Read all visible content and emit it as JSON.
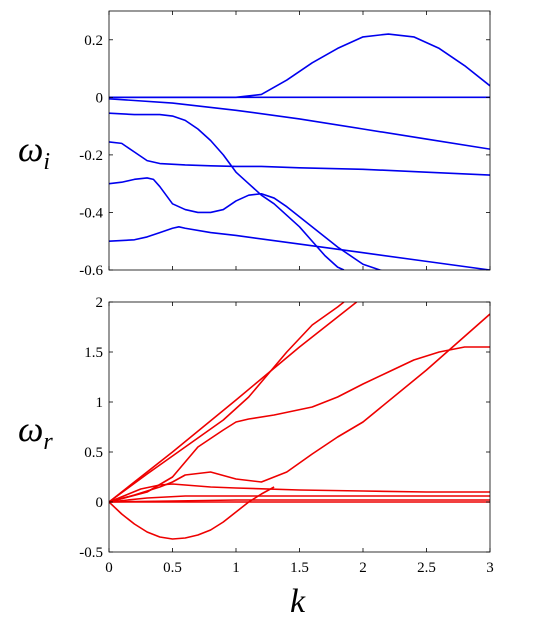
{
  "chart_data": [
    {
      "type": "line",
      "title": "",
      "ylabel_symbol": "ω",
      "ylabel_subscript": "i",
      "xlabel": "",
      "xlim": [
        0,
        3
      ],
      "ylim": [
        -0.6,
        0.3
      ],
      "yticks": [
        0.2,
        0,
        -0.2,
        -0.4,
        -0.6
      ],
      "ytick_labels": [
        "0.2",
        "0",
        "-0.2",
        "-0.4",
        "-0.6"
      ],
      "grid": false,
      "line_color": "#0000ee",
      "series": [
        {
          "x": [
            0,
            1.0,
            1.2,
            1.4,
            1.6,
            1.8,
            2.0,
            2.2,
            2.4,
            2.6,
            2.8,
            3.0
          ],
          "values": [
            0,
            0,
            0.01,
            0.06,
            0.12,
            0.17,
            0.21,
            0.22,
            0.21,
            0.17,
            0.11,
            0.04
          ]
        },
        {
          "x": [
            0,
            3
          ],
          "values": [
            0,
            0
          ]
        },
        {
          "x": [
            0,
            0.5,
            1.0,
            1.5,
            2.0,
            2.5,
            3.0
          ],
          "values": [
            -0.005,
            -0.02,
            -0.045,
            -0.075,
            -0.11,
            -0.145,
            -0.18
          ]
        },
        {
          "x": [
            0,
            0.2,
            0.4,
            0.5,
            0.6,
            0.7,
            0.8,
            0.9,
            1.0,
            1.1,
            1.2,
            1.3,
            1.4,
            1.5,
            1.6,
            1.7,
            1.8,
            1.85
          ],
          "values": [
            -0.055,
            -0.06,
            -0.06,
            -0.065,
            -0.08,
            -0.11,
            -0.15,
            -0.2,
            -0.26,
            -0.3,
            -0.34,
            -0.37,
            -0.41,
            -0.45,
            -0.5,
            -0.55,
            -0.59,
            -0.6
          ]
        },
        {
          "x": [
            0,
            0.1,
            0.2,
            0.3,
            0.4,
            0.6,
            0.8,
            1.0,
            1.2,
            1.5,
            2.0,
            2.5,
            3.0
          ],
          "values": [
            -0.155,
            -0.16,
            -0.19,
            -0.22,
            -0.23,
            -0.235,
            -0.238,
            -0.24,
            -0.24,
            -0.245,
            -0.25,
            -0.26,
            -0.27
          ]
        },
        {
          "x": [
            0,
            0.1,
            0.2,
            0.3,
            0.35,
            0.4,
            0.5,
            0.6,
            0.7,
            0.8,
            0.9,
            1.0,
            1.1,
            1.2,
            1.3,
            1.4,
            1.6,
            1.8,
            2.0,
            2.2
          ],
          "values": [
            -0.3,
            -0.295,
            -0.285,
            -0.28,
            -0.285,
            -0.31,
            -0.37,
            -0.39,
            -0.4,
            -0.4,
            -0.39,
            -0.36,
            -0.34,
            -0.335,
            -0.35,
            -0.38,
            -0.45,
            -0.52,
            -0.58,
            -0.61
          ]
        },
        {
          "x": [
            0,
            0.2,
            0.3,
            0.4,
            0.5,
            0.55,
            0.6,
            0.8,
            1.0,
            1.5,
            2.0,
            2.5,
            3.0
          ],
          "values": [
            -0.5,
            -0.495,
            -0.485,
            -0.47,
            -0.455,
            -0.45,
            -0.455,
            -0.47,
            -0.48,
            -0.51,
            -0.54,
            -0.57,
            -0.6
          ]
        }
      ]
    },
    {
      "type": "line",
      "title": "",
      "ylabel_symbol": "ω",
      "ylabel_subscript": "r",
      "xlabel": "k",
      "xlim": [
        0,
        3
      ],
      "ylim": [
        -0.5,
        2
      ],
      "xticks": [
        0,
        0.5,
        1,
        1.5,
        2,
        2.5,
        3
      ],
      "xtick_labels": [
        "0",
        "0.5",
        "1",
        "1.5",
        "2",
        "2.5",
        "3"
      ],
      "yticks": [
        2,
        1.5,
        1,
        0.5,
        0,
        -0.5
      ],
      "ytick_labels": [
        "2",
        "1.5",
        "1",
        "0.5",
        "0",
        "-0.5"
      ],
      "grid": false,
      "line_color": "#ee0000",
      "series": [
        {
          "x": [
            0,
            0.5,
            1.0,
            1.5,
            1.95
          ],
          "values": [
            0,
            0.5,
            1.02,
            1.55,
            2.0
          ]
        },
        {
          "x": [
            0,
            0.3,
            0.6,
            0.9,
            1.1,
            1.2,
            1.4,
            1.6,
            1.8,
            1.85
          ],
          "values": [
            0,
            0.28,
            0.55,
            0.82,
            1.05,
            1.2,
            1.5,
            1.77,
            1.95,
            2.0
          ]
        },
        {
          "x": [
            0,
            0.3,
            0.5,
            0.7,
            0.9,
            1.0,
            1.1,
            1.3,
            1.6,
            1.8,
            2.0,
            2.2,
            2.4,
            2.6,
            2.8,
            3.0
          ],
          "values": [
            0,
            0.1,
            0.25,
            0.55,
            0.72,
            0.8,
            0.83,
            0.87,
            0.95,
            1.05,
            1.18,
            1.3,
            1.42,
            1.5,
            1.55,
            1.55
          ]
        },
        {
          "x": [
            0,
            0.2,
            0.4,
            0.5,
            0.6,
            0.8,
            1.0,
            1.2,
            1.4,
            1.6,
            1.8,
            2.0,
            2.5,
            3.0
          ],
          "values": [
            0,
            0.07,
            0.15,
            0.2,
            0.27,
            0.3,
            0.23,
            0.2,
            0.3,
            0.48,
            0.65,
            0.8,
            1.32,
            1.88
          ]
        },
        {
          "x": [
            0,
            0.25,
            0.4,
            0.5,
            0.6,
            0.8,
            1.0,
            1.5,
            2.0,
            2.5,
            3.0
          ],
          "values": [
            0,
            0.13,
            0.17,
            0.18,
            0.17,
            0.15,
            0.14,
            0.12,
            0.11,
            0.1,
            0.1
          ]
        },
        {
          "x": [
            0,
            0.3,
            0.6,
            1.0,
            1.5,
            2.0,
            2.5,
            3.0
          ],
          "values": [
            0,
            0.04,
            0.06,
            0.06,
            0.06,
            0.06,
            0.06,
            0.06
          ]
        },
        {
          "x": [
            0,
            0.5,
            1.0,
            1.5,
            2.0,
            2.5,
            3.0
          ],
          "values": [
            0,
            0.01,
            0.02,
            0.02,
            0.02,
            0.02,
            0.02
          ]
        },
        {
          "x": [
            0,
            3
          ],
          "values": [
            0,
            0
          ]
        },
        {
          "x": [
            0,
            0.1,
            0.2,
            0.3,
            0.4,
            0.5,
            0.6,
            0.7,
            0.8,
            0.9,
            1.0,
            1.1,
            1.2,
            1.3
          ],
          "values": [
            0,
            -0.12,
            -0.22,
            -0.3,
            -0.35,
            -0.37,
            -0.36,
            -0.33,
            -0.28,
            -0.2,
            -0.1,
            0.0,
            0.08,
            0.15
          ]
        }
      ]
    }
  ]
}
